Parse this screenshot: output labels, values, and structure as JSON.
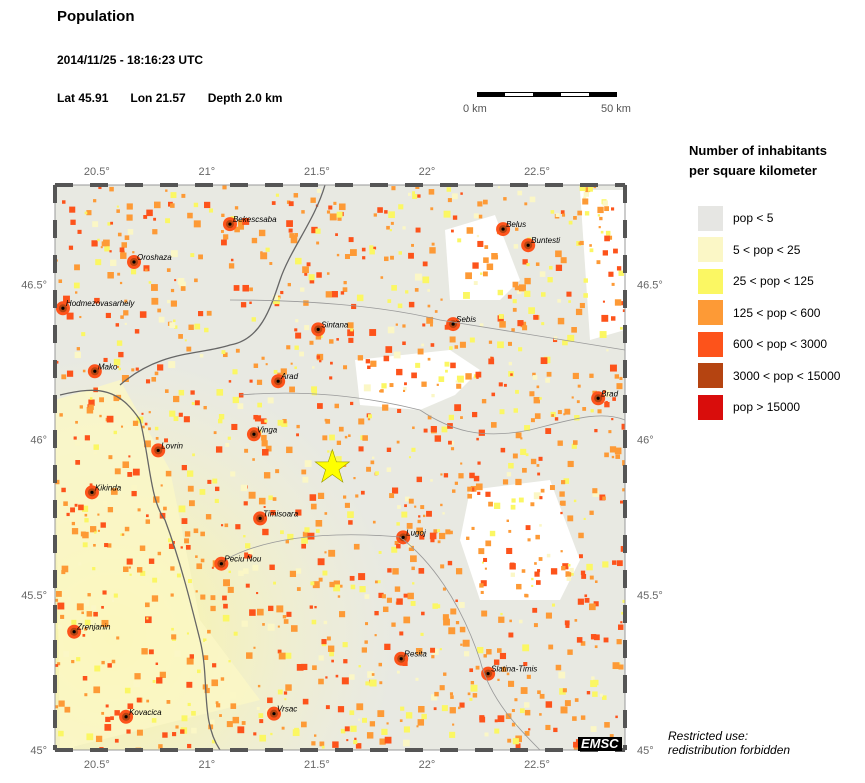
{
  "header": {
    "title": "Population",
    "datetime": "2014/11/25 - 18:16:23 UTC",
    "lat": "Lat 45.91",
    "lon": "Lon  21.57",
    "depth": "Depth  2.0 km"
  },
  "scale_bar": {
    "start_label": "0 km",
    "end_label": "50 km"
  },
  "map": {
    "lon_range": [
      20.31,
      22.9
    ],
    "lat_range": [
      45.0,
      46.82
    ],
    "lon_ticks": [
      {
        "v": 20.5,
        "label": "20.5°"
      },
      {
        "v": 21,
        "label": "21°"
      },
      {
        "v": 21.5,
        "label": "21.5°"
      },
      {
        "v": 22,
        "label": "22°"
      },
      {
        "v": 22.5,
        "label": "22.5°"
      }
    ],
    "lat_ticks": [
      {
        "v": 45,
        "label": "45°"
      },
      {
        "v": 45.5,
        "label": "45.5°"
      },
      {
        "v": 46,
        "label": "46°"
      },
      {
        "v": 46.5,
        "label": "46.5°"
      }
    ],
    "epicenter": {
      "lat": 45.91,
      "lon": 21.57,
      "color": "#ffff00"
    },
    "cities": [
      {
        "name": "Bekescsaba",
        "lon": 21.105,
        "lat": 46.694
      },
      {
        "name": "Oroshaza",
        "lon": 20.669,
        "lat": 46.572
      },
      {
        "name": "Hodmezovasarhely",
        "lon": 20.346,
        "lat": 46.423
      },
      {
        "name": "Mako",
        "lon": 20.491,
        "lat": 46.22
      },
      {
        "name": "Arad",
        "lon": 21.324,
        "lat": 46.188
      },
      {
        "name": "Sintana",
        "lon": 21.506,
        "lat": 46.355
      },
      {
        "name": "Sebis",
        "lon": 22.119,
        "lat": 46.372
      },
      {
        "name": "Belus",
        "lon": 22.346,
        "lat": 46.678
      },
      {
        "name": "Buntesti",
        "lon": 22.46,
        "lat": 46.626
      },
      {
        "name": "Brad",
        "lon": 22.778,
        "lat": 46.133
      },
      {
        "name": "Vinga",
        "lon": 21.214,
        "lat": 46.017
      },
      {
        "name": "Lovrin",
        "lon": 20.779,
        "lat": 45.965
      },
      {
        "name": "Kikinda",
        "lon": 20.478,
        "lat": 45.83
      },
      {
        "name": "Timisoara",
        "lon": 21.242,
        "lat": 45.746
      },
      {
        "name": "Lugoj",
        "lon": 21.892,
        "lat": 45.685
      },
      {
        "name": "Peciu Nou",
        "lon": 21.066,
        "lat": 45.6
      },
      {
        "name": "Zrenjanin",
        "lon": 20.397,
        "lat": 45.381
      },
      {
        "name": "Resita",
        "lon": 21.883,
        "lat": 45.294
      },
      {
        "name": "Slatina-Timis",
        "lon": 22.278,
        "lat": 45.246
      },
      {
        "name": "Kovacica",
        "lon": 20.633,
        "lat": 45.107
      },
      {
        "name": "Vrsac",
        "lon": 21.305,
        "lat": 45.117
      }
    ]
  },
  "legend": {
    "title_line1": "Number of inhabitants",
    "title_line2": "per square kilometer",
    "items": [
      {
        "label": "pop < 5",
        "color": "#e6e6e3"
      },
      {
        "label": "5 < pop < 25",
        "color": "#fbf7c6"
      },
      {
        "label": "25 < pop < 125",
        "color": "#fbf763"
      },
      {
        "label": "125 < pop < 600",
        "color": "#fd9a36"
      },
      {
        "label": "600 < pop < 3000",
        "color": "#fd531b"
      },
      {
        "label": "3000 < pop < 15000",
        "color": "#b54411"
      },
      {
        "label": "pop > 15000",
        "color": "#d90d0c"
      }
    ]
  },
  "footer": {
    "note_line1": "Restricted use:",
    "note_line2": "redistribution forbidden",
    "logo": "EMSC"
  }
}
